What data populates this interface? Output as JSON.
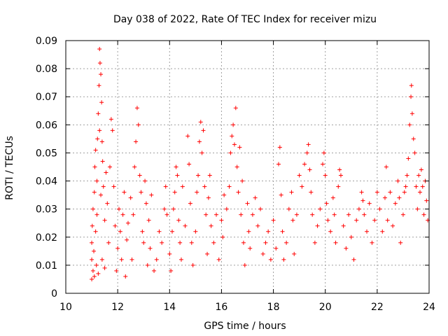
{
  "chart_data": {
    "type": "scatter",
    "title": "Day 038 of 2022, Rate Of TEC Index for receiver mizu",
    "xlabel": "GPS time / hours",
    "ylabel": "ROTI / TECUs",
    "xlim": [
      10,
      24
    ],
    "ylim": [
      0,
      0.09
    ],
    "xticks": [
      "10",
      "12",
      "14",
      "16",
      "18",
      "20",
      "22",
      "24"
    ],
    "yticks": [
      "0",
      "0.01",
      "0.02",
      "0.03",
      "0.04",
      "0.05",
      "0.06",
      "0.07",
      "0.08",
      "0.09"
    ],
    "grid": true,
    "marker": "+",
    "color": "#ff0000",
    "series": [
      {
        "points": [
          [
            11.0,
            0.005
          ],
          [
            11.0,
            0.012
          ],
          [
            11.0,
            0.018
          ],
          [
            11.02,
            0.024
          ],
          [
            11.05,
            0.008
          ],
          [
            11.05,
            0.03
          ],
          [
            11.08,
            0.015
          ],
          [
            11.1,
            0.036
          ],
          [
            11.1,
            0.006
          ],
          [
            11.12,
            0.045
          ],
          [
            11.15,
            0.051
          ],
          [
            11.15,
            0.022
          ],
          [
            11.18,
            0.01
          ],
          [
            11.2,
            0.04
          ],
          [
            11.2,
            0.028
          ],
          [
            11.22,
            0.055
          ],
          [
            11.25,
            0.064
          ],
          [
            11.25,
            0.007
          ],
          [
            11.28,
            0.074
          ],
          [
            11.3,
            0.087
          ],
          [
            11.3,
            0.058
          ],
          [
            11.32,
            0.082
          ],
          [
            11.35,
            0.078
          ],
          [
            11.35,
            0.035
          ],
          [
            11.38,
            0.068
          ],
          [
            11.4,
            0.054
          ],
          [
            11.4,
            0.012
          ],
          [
            11.42,
            0.047
          ],
          [
            11.45,
            0.038
          ],
          [
            11.5,
            0.026
          ],
          [
            11.5,
            0.009
          ],
          [
            11.55,
            0.043
          ],
          [
            11.6,
            0.032
          ],
          [
            11.65,
            0.018
          ],
          [
            11.7,
            0.045
          ],
          [
            11.75,
            0.062
          ],
          [
            11.8,
            0.058
          ],
          [
            11.85,
            0.038
          ],
          [
            11.9,
            0.024
          ],
          [
            11.95,
            0.008
          ],
          [
            12.0,
            0.016
          ],
          [
            12.05,
            0.03
          ],
          [
            12.1,
            0.022
          ],
          [
            12.15,
            0.012
          ],
          [
            12.2,
            0.028
          ],
          [
            12.25,
            0.036
          ],
          [
            12.3,
            0.006
          ],
          [
            12.35,
            0.019
          ],
          [
            12.4,
            0.025
          ],
          [
            12.5,
            0.034
          ],
          [
            12.55,
            0.012
          ],
          [
            12.6,
            0.028
          ],
          [
            12.65,
            0.045
          ],
          [
            12.7,
            0.054
          ],
          [
            12.75,
            0.066
          ],
          [
            12.8,
            0.06
          ],
          [
            12.85,
            0.042
          ],
          [
            12.9,
            0.036
          ],
          [
            12.95,
            0.022
          ],
          [
            13.0,
            0.018
          ],
          [
            13.05,
            0.04
          ],
          [
            13.1,
            0.032
          ],
          [
            13.15,
            0.01
          ],
          [
            13.2,
            0.026
          ],
          [
            13.25,
            0.016
          ],
          [
            13.3,
            0.035
          ],
          [
            13.4,
            0.008
          ],
          [
            13.5,
            0.012
          ],
          [
            13.6,
            0.022
          ],
          [
            13.7,
            0.018
          ],
          [
            13.8,
            0.03
          ],
          [
            13.85,
            0.038
          ],
          [
            13.9,
            0.028
          ],
          [
            14.0,
            0.014
          ],
          [
            14.05,
            0.008
          ],
          [
            14.1,
            0.022
          ],
          [
            14.15,
            0.03
          ],
          [
            14.2,
            0.036
          ],
          [
            14.25,
            0.045
          ],
          [
            14.3,
            0.042
          ],
          [
            14.35,
            0.026
          ],
          [
            14.4,
            0.018
          ],
          [
            14.45,
            0.012
          ],
          [
            14.5,
            0.038
          ],
          [
            14.6,
            0.024
          ],
          [
            14.7,
            0.056
          ],
          [
            14.75,
            0.046
          ],
          [
            14.8,
            0.032
          ],
          [
            14.85,
            0.018
          ],
          [
            14.9,
            0.01
          ],
          [
            15.0,
            0.022
          ],
          [
            15.05,
            0.036
          ],
          [
            15.1,
            0.042
          ],
          [
            15.15,
            0.054
          ],
          [
            15.2,
            0.061
          ],
          [
            15.25,
            0.05
          ],
          [
            15.3,
            0.058
          ],
          [
            15.35,
            0.038
          ],
          [
            15.4,
            0.028
          ],
          [
            15.45,
            0.014
          ],
          [
            15.5,
            0.034
          ],
          [
            15.55,
            0.042
          ],
          [
            15.6,
            0.024
          ],
          [
            15.7,
            0.018
          ],
          [
            15.8,
            0.028
          ],
          [
            15.9,
            0.012
          ],
          [
            16.0,
            0.026
          ],
          [
            16.05,
            0.02
          ],
          [
            16.1,
            0.035
          ],
          [
            16.2,
            0.03
          ],
          [
            16.3,
            0.038
          ],
          [
            16.35,
            0.05
          ],
          [
            16.4,
            0.056
          ],
          [
            16.45,
            0.06
          ],
          [
            16.5,
            0.053
          ],
          [
            16.55,
            0.066
          ],
          [
            16.6,
            0.045
          ],
          [
            16.65,
            0.036
          ],
          [
            16.7,
            0.052
          ],
          [
            16.75,
            0.028
          ],
          [
            16.8,
            0.04
          ],
          [
            16.85,
            0.018
          ],
          [
            16.9,
            0.01
          ],
          [
            17.0,
            0.032
          ],
          [
            17.05,
            0.022
          ],
          [
            17.1,
            0.016
          ],
          [
            17.2,
            0.028
          ],
          [
            17.3,
            0.034
          ],
          [
            17.4,
            0.024
          ],
          [
            17.5,
            0.03
          ],
          [
            17.6,
            0.014
          ],
          [
            17.7,
            0.018
          ],
          [
            17.8,
            0.022
          ],
          [
            17.9,
            0.012
          ],
          [
            18.0,
            0.026
          ],
          [
            18.1,
            0.016
          ],
          [
            18.2,
            0.046
          ],
          [
            18.25,
            0.052
          ],
          [
            18.3,
            0.035
          ],
          [
            18.35,
            0.022
          ],
          [
            18.4,
            0.012
          ],
          [
            18.5,
            0.018
          ],
          [
            18.6,
            0.03
          ],
          [
            18.7,
            0.036
          ],
          [
            18.75,
            0.026
          ],
          [
            18.8,
            0.014
          ],
          [
            18.9,
            0.028
          ],
          [
            19.0,
            0.042
          ],
          [
            19.1,
            0.038
          ],
          [
            19.2,
            0.046
          ],
          [
            19.3,
            0.05
          ],
          [
            19.35,
            0.053
          ],
          [
            19.4,
            0.044
          ],
          [
            19.45,
            0.036
          ],
          [
            19.5,
            0.028
          ],
          [
            19.6,
            0.018
          ],
          [
            19.7,
            0.024
          ],
          [
            19.8,
            0.03
          ],
          [
            19.9,
            0.046
          ],
          [
            19.95,
            0.05
          ],
          [
            20.0,
            0.042
          ],
          [
            20.05,
            0.032
          ],
          [
            20.1,
            0.026
          ],
          [
            20.2,
            0.022
          ],
          [
            20.3,
            0.034
          ],
          [
            20.35,
            0.028
          ],
          [
            20.4,
            0.018
          ],
          [
            20.5,
            0.038
          ],
          [
            20.55,
            0.044
          ],
          [
            20.6,
            0.042
          ],
          [
            20.7,
            0.024
          ],
          [
            20.8,
            0.016
          ],
          [
            20.9,
            0.028
          ],
          [
            21.0,
            0.02
          ],
          [
            21.1,
            0.012
          ],
          [
            21.2,
            0.026
          ],
          [
            21.3,
            0.03
          ],
          [
            21.4,
            0.036
          ],
          [
            21.45,
            0.033
          ],
          [
            21.5,
            0.028
          ],
          [
            21.6,
            0.022
          ],
          [
            21.7,
            0.032
          ],
          [
            21.8,
            0.018
          ],
          [
            21.9,
            0.026
          ],
          [
            22.0,
            0.036
          ],
          [
            22.1,
            0.03
          ],
          [
            22.2,
            0.022
          ],
          [
            22.3,
            0.034
          ],
          [
            22.35,
            0.045
          ],
          [
            22.4,
            0.026
          ],
          [
            22.5,
            0.036
          ],
          [
            22.6,
            0.024
          ],
          [
            22.7,
            0.032
          ],
          [
            22.8,
            0.04
          ],
          [
            22.85,
            0.034
          ],
          [
            22.9,
            0.018
          ],
          [
            23.0,
            0.028
          ],
          [
            23.05,
            0.036
          ],
          [
            23.1,
            0.038
          ],
          [
            23.15,
            0.042
          ],
          [
            23.2,
            0.048
          ],
          [
            23.25,
            0.06
          ],
          [
            23.3,
            0.07
          ],
          [
            23.32,
            0.074
          ],
          [
            23.35,
            0.064
          ],
          [
            23.4,
            0.055
          ],
          [
            23.45,
            0.05
          ],
          [
            23.5,
            0.038
          ],
          [
            23.55,
            0.03
          ],
          [
            23.6,
            0.042
          ],
          [
            23.65,
            0.036
          ],
          [
            23.7,
            0.044
          ],
          [
            23.75,
            0.038
          ],
          [
            23.8,
            0.028
          ],
          [
            23.85,
            0.04
          ],
          [
            23.9,
            0.033
          ],
          [
            23.95,
            0.026
          ]
        ]
      }
    ]
  }
}
